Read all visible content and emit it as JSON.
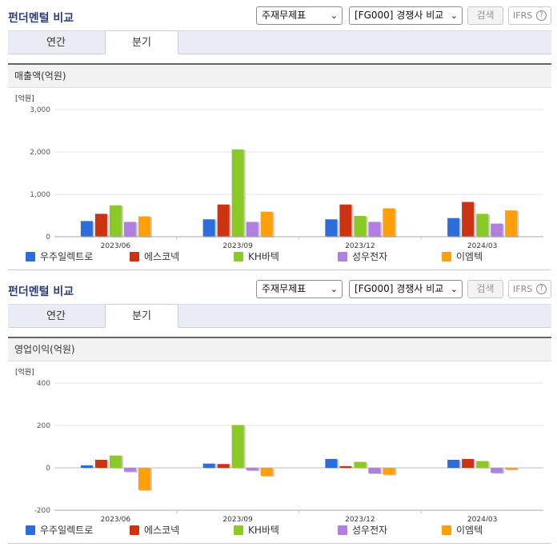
{
  "sections": [
    {
      "header": "펀더멘털 비교",
      "select_a": "주재무제표",
      "select_b": "[FG000] 경쟁사 비교",
      "search_label": "검색",
      "ifrs_label": "IFRS",
      "ifrs_help": "?",
      "tabs": [
        "연간",
        "분기"
      ],
      "metric_title": "매출액(억원)"
    },
    {
      "header": "펀더멘털 비교",
      "select_a": "주재무제표",
      "select_b": "[FG000] 경쟁사 비교",
      "search_label": "검색",
      "ifrs_label": "IFRS",
      "ifrs_help": "?",
      "tabs": [
        "연간",
        "분기"
      ],
      "metric_title": "영업이익(억원)"
    }
  ],
  "chart_data": [
    {
      "type": "bar",
      "unit_label": "[억원]",
      "categories": [
        "2023/06",
        "2023/09",
        "2023/12",
        "2024/03"
      ],
      "yticks": [
        0,
        1000,
        2000,
        3000
      ],
      "ytick_labels": [
        "0",
        "1,000",
        "2,000",
        "3,000"
      ],
      "ylim": [
        0,
        3000
      ],
      "grid": true,
      "legend": "bottom",
      "series": [
        {
          "name": "우주일렉트로",
          "color": "#2b6ddb",
          "values": [
            370,
            410,
            410,
            440
          ]
        },
        {
          "name": "에스코넥",
          "color": "#cc3311",
          "values": [
            540,
            760,
            760,
            820
          ]
        },
        {
          "name": "KH바텍",
          "color": "#8ac926",
          "values": [
            740,
            2060,
            490,
            540
          ]
        },
        {
          "name": "성우전자",
          "color": "#b07fe0",
          "values": [
            350,
            350,
            350,
            310
          ]
        },
        {
          "name": "이엠텍",
          "color": "#ff9f0a",
          "values": [
            480,
            590,
            670,
            620
          ]
        }
      ]
    },
    {
      "type": "bar",
      "unit_label": "[억원]",
      "categories": [
        "2023/06",
        "2023/09",
        "2023/12",
        "2024/03"
      ],
      "yticks": [
        -200,
        0,
        200,
        400
      ],
      "ytick_labels": [
        "-200",
        "0",
        "200",
        "400"
      ],
      "ylim": [
        -200,
        400
      ],
      "grid": true,
      "legend": "bottom",
      "series": [
        {
          "name": "우주일렉트로",
          "color": "#2b6ddb",
          "values": [
            12,
            20,
            42,
            38
          ]
        },
        {
          "name": "에스코넥",
          "color": "#cc3311",
          "values": [
            38,
            18,
            8,
            42
          ]
        },
        {
          "name": "KH바텍",
          "color": "#8ac926",
          "values": [
            58,
            202,
            28,
            32
          ]
        },
        {
          "name": "성우전자",
          "color": "#b07fe0",
          "values": [
            -18,
            -12,
            -26,
            -24
          ]
        },
        {
          "name": "이엠텍",
          "color": "#ff9f0a",
          "values": [
            -105,
            -38,
            -32,
            -8
          ]
        }
      ]
    }
  ]
}
